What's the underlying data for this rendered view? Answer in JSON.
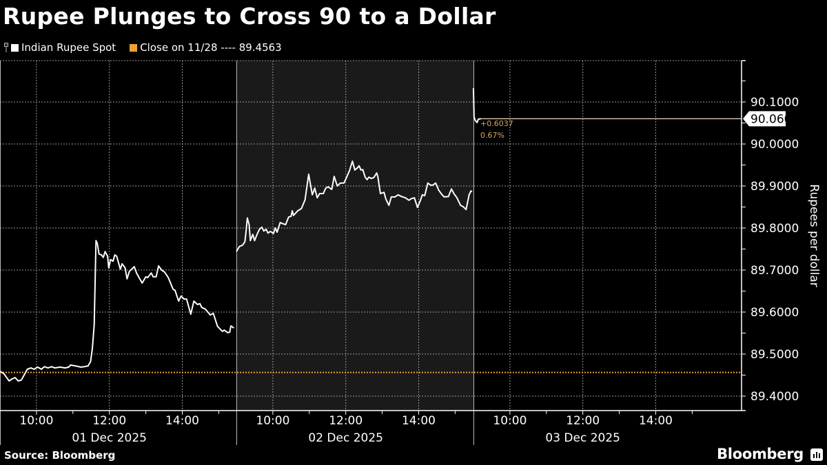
{
  "header": {
    "title": "Rupee Plunges to Cross 90 to a Dollar"
  },
  "legend": {
    "series_label": "Indian Rupee Spot",
    "close_label": "Close on 11/28 ---- 89.4563"
  },
  "colors": {
    "background": "#000000",
    "shaded_day": "#1a1a1a",
    "series": "#ffffff",
    "close_line": "#f0a030",
    "last_line": "#f5d9b8",
    "annotation": "#d9a860"
  },
  "annotation": {
    "change": "+0.6037",
    "change_pct": "0.67%"
  },
  "last_value_label": "90.0600",
  "footer": {
    "source": "Source: Bloomberg",
    "brand": "Bloomberg"
  },
  "chart_data": {
    "type": "line",
    "title": "Rupee Plunges to Cross 90 to a Dollar",
    "xlabel": "",
    "ylabel": "Rupees per dollar",
    "ylim": [
      89.35,
      90.17
    ],
    "y_ticks": [
      "89.4000",
      "89.5000",
      "89.6000",
      "89.7000",
      "89.8000",
      "89.9000",
      "90.0000",
      "90.1000"
    ],
    "x_tick_labels": [
      {
        "day": "01 Dec 2025",
        "times": [
          "10:00",
          "12:00",
          "14:00"
        ]
      },
      {
        "day": "02 Dec 2025",
        "times": [
          "10:00",
          "12:00",
          "14:00"
        ]
      },
      {
        "day": "03 Dec 2025",
        "times": [
          "10:00",
          "12:00",
          "14:00"
        ]
      }
    ],
    "grid": true,
    "legend_position": "top-left",
    "reference_line": {
      "name": "Close on 11/28",
      "value": 89.4563,
      "style": "dotted"
    },
    "last_value": 90.06,
    "change": 0.6037,
    "change_pct": 0.67,
    "series": [
      {
        "name": "Indian Rupee Spot",
        "day": "01 Dec 2025",
        "points": [
          [
            "09:00",
            89.459
          ],
          [
            "09:06",
            89.454
          ],
          [
            "09:15",
            89.436
          ],
          [
            "09:20",
            89.441
          ],
          [
            "09:25",
            89.444
          ],
          [
            "09:30",
            89.436
          ],
          [
            "09:35",
            89.438
          ],
          [
            "09:40",
            89.451
          ],
          [
            "09:45",
            89.464
          ],
          [
            "09:51",
            89.467
          ],
          [
            "09:56",
            89.464
          ],
          [
            "10:02",
            89.469
          ],
          [
            "10:08",
            89.464
          ],
          [
            "10:13",
            89.47
          ],
          [
            "10:19",
            89.467
          ],
          [
            "10:25",
            89.47
          ],
          [
            "10:30",
            89.467
          ],
          [
            "10:39",
            89.469
          ],
          [
            "10:47",
            89.467
          ],
          [
            "10:53",
            89.469
          ],
          [
            "10:56",
            89.474
          ],
          [
            "11:04",
            89.472
          ],
          [
            "11:13",
            89.469
          ],
          [
            "11:19",
            89.47
          ],
          [
            "11:25",
            89.472
          ],
          [
            "11:29",
            89.482
          ],
          [
            "11:32",
            89.513
          ],
          [
            "11:35",
            89.57
          ],
          [
            "11:38",
            89.77
          ],
          [
            "11:40",
            89.764
          ],
          [
            "11:43",
            89.738
          ],
          [
            "11:47",
            89.736
          ],
          [
            "11:50",
            89.73
          ],
          [
            "11:53",
            89.744
          ],
          [
            "11:57",
            89.733
          ],
          [
            "11:59",
            89.705
          ],
          [
            "12:02",
            89.725
          ],
          [
            "12:06",
            89.721
          ],
          [
            "12:09",
            89.736
          ],
          [
            "12:12",
            89.733
          ],
          [
            "12:18",
            89.702
          ],
          [
            "12:21",
            89.715
          ],
          [
            "12:26",
            89.705
          ],
          [
            "12:29",
            89.679
          ],
          [
            "12:33",
            89.697
          ],
          [
            "12:41",
            89.708
          ],
          [
            "12:45",
            89.692
          ],
          [
            "12:54",
            89.669
          ],
          [
            "13:00",
            89.684
          ],
          [
            "13:03",
            89.682
          ],
          [
            "13:09",
            89.693
          ],
          [
            "13:12",
            89.684
          ],
          [
            "13:17",
            89.684
          ],
          [
            "13:21",
            89.71
          ],
          [
            "13:26",
            89.7
          ],
          [
            "13:31",
            89.695
          ],
          [
            "13:37",
            89.682
          ],
          [
            "13:45",
            89.654
          ],
          [
            "13:48",
            89.652
          ],
          [
            "13:54",
            89.626
          ],
          [
            "13:58",
            89.638
          ],
          [
            "14:03",
            89.631
          ],
          [
            "14:07",
            89.631
          ],
          [
            "14:14",
            89.595
          ],
          [
            "14:19",
            89.626
          ],
          [
            "14:25",
            89.618
          ],
          [
            "14:29",
            89.62
          ],
          [
            "14:32",
            89.611
          ],
          [
            "14:38",
            89.607
          ],
          [
            "14:46",
            89.593
          ],
          [
            "14:51",
            89.597
          ],
          [
            "14:58",
            89.566
          ],
          [
            "15:06",
            89.554
          ],
          [
            "15:09",
            89.557
          ],
          [
            "15:15",
            89.551
          ],
          [
            "15:18",
            89.552
          ],
          [
            "15:20",
            89.567
          ],
          [
            "15:25",
            89.562
          ]
        ]
      },
      {
        "name": "Indian Rupee Spot",
        "day": "02 Dec 2025",
        "points": [
          [
            "09:00",
            89.744
          ],
          [
            "09:05",
            89.756
          ],
          [
            "09:10",
            89.759
          ],
          [
            "09:14",
            89.767
          ],
          [
            "09:16",
            89.793
          ],
          [
            "09:18",
            89.824
          ],
          [
            "09:21",
            89.808
          ],
          [
            "09:23",
            89.77
          ],
          [
            "09:27",
            89.785
          ],
          [
            "09:30",
            89.77
          ],
          [
            "09:34",
            89.785
          ],
          [
            "09:38",
            89.797
          ],
          [
            "09:42",
            89.802
          ],
          [
            "09:45",
            89.793
          ],
          [
            "09:49",
            89.797
          ],
          [
            "09:52",
            89.788
          ],
          [
            "09:56",
            89.792
          ],
          [
            "10:01",
            89.787
          ],
          [
            "10:04",
            89.8
          ],
          [
            "10:07",
            89.79
          ],
          [
            "10:12",
            89.813
          ],
          [
            "10:17",
            89.81
          ],
          [
            "10:21",
            89.808
          ],
          [
            "10:26",
            89.826
          ],
          [
            "10:30",
            89.828
          ],
          [
            "10:32",
            89.841
          ],
          [
            "10:34",
            89.83
          ],
          [
            "10:41",
            89.841
          ],
          [
            "10:47",
            89.846
          ],
          [
            "10:53",
            89.867
          ],
          [
            "10:59",
            89.928
          ],
          [
            "11:03",
            89.895
          ],
          [
            "11:05",
            89.879
          ],
          [
            "11:09",
            89.895
          ],
          [
            "11:13",
            89.872
          ],
          [
            "11:17",
            89.882
          ],
          [
            "11:23",
            89.882
          ],
          [
            "11:27",
            89.895
          ],
          [
            "11:31",
            89.898
          ],
          [
            "11:37",
            89.892
          ],
          [
            "11:41",
            89.923
          ],
          [
            "11:46",
            89.9
          ],
          [
            "11:51",
            89.907
          ],
          [
            "11:57",
            89.907
          ],
          [
            "12:00",
            89.916
          ],
          [
            "12:06",
            89.936
          ],
          [
            "12:11",
            89.959
          ],
          [
            "12:15",
            89.938
          ],
          [
            "12:19",
            89.943
          ],
          [
            "12:22",
            89.948
          ],
          [
            "12:25",
            89.938
          ],
          [
            "12:28",
            89.939
          ],
          [
            "12:32",
            89.921
          ],
          [
            "12:35",
            89.915
          ],
          [
            "12:38",
            89.921
          ],
          [
            "12:42",
            89.918
          ],
          [
            "12:46",
            89.92
          ],
          [
            "12:51",
            89.931
          ],
          [
            "12:53",
            89.921
          ],
          [
            "12:57",
            89.882
          ],
          [
            "13:03",
            89.885
          ],
          [
            "13:06",
            89.869
          ],
          [
            "13:11",
            89.854
          ],
          [
            "13:15",
            89.874
          ],
          [
            "13:21",
            89.874
          ],
          [
            "13:26",
            89.879
          ],
          [
            "13:32",
            89.875
          ],
          [
            "13:38",
            89.872
          ],
          [
            "13:44",
            89.866
          ],
          [
            "13:48",
            89.87
          ],
          [
            "13:53",
            89.872
          ],
          [
            "13:58",
            89.849
          ],
          [
            "14:03",
            89.866
          ],
          [
            "14:06",
            89.879
          ],
          [
            "14:10",
            89.877
          ],
          [
            "14:15",
            89.907
          ],
          [
            "14:20",
            89.902
          ],
          [
            "14:23",
            89.902
          ],
          [
            "14:28",
            89.907
          ],
          [
            "14:33",
            89.89
          ],
          [
            "14:38",
            89.88
          ],
          [
            "14:42",
            89.874
          ],
          [
            "14:49",
            89.875
          ],
          [
            "14:54",
            89.893
          ],
          [
            "14:58",
            89.882
          ],
          [
            "15:03",
            89.872
          ],
          [
            "15:09",
            89.854
          ],
          [
            "15:13",
            89.851
          ],
          [
            "15:18",
            89.844
          ],
          [
            "15:23",
            89.879
          ],
          [
            "15:26",
            89.888
          ],
          [
            "15:28",
            89.887
          ]
        ]
      },
      {
        "name": "Indian Rupee Spot",
        "day": "03 Dec 2025",
        "points": [
          [
            "09:00",
            90.133
          ],
          [
            "09:01",
            90.064
          ],
          [
            "09:03",
            90.056
          ],
          [
            "09:06",
            90.051
          ],
          [
            "09:08",
            90.059
          ],
          [
            "09:12",
            90.06
          ]
        ]
      }
    ]
  }
}
